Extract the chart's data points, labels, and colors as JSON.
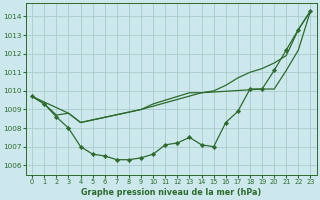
{
  "background_color": "#cce8ec",
  "grid_color": "#aacccc",
  "line_color": "#2d6a2d",
  "marker_color": "#2d6a2d",
  "title": "Graphe pression niveau de la mer (hPa)",
  "xlim": [
    -0.5,
    23.5
  ],
  "ylim": [
    1005.5,
    1014.7
  ],
  "yticks": [
    1006,
    1007,
    1008,
    1009,
    1010,
    1011,
    1012,
    1013,
    1014
  ],
  "xticks": [
    0,
    1,
    2,
    3,
    4,
    5,
    6,
    7,
    8,
    9,
    10,
    11,
    12,
    13,
    14,
    15,
    16,
    17,
    18,
    19,
    20,
    21,
    22,
    23
  ],
  "curve1": {
    "x": [
      0,
      1,
      2,
      3,
      4,
      9,
      10,
      11,
      12,
      13,
      14,
      15,
      16,
      17,
      18,
      19,
      20,
      21,
      22,
      23
    ],
    "y": [
      1009.7,
      1009.3,
      1008.7,
      1008.8,
      1008.3,
      1009.0,
      1009.3,
      1009.5,
      1009.7,
      1009.9,
      1009.9,
      1010.0,
      1010.3,
      1010.7,
      1011.0,
      1011.2,
      1011.5,
      1011.9,
      1013.3,
      1014.3
    ]
  },
  "curve2": {
    "x": [
      0,
      1,
      2,
      3,
      4,
      5,
      6,
      7,
      8,
      9,
      10,
      11,
      12,
      13,
      14,
      15,
      16,
      17,
      18,
      19,
      20,
      21,
      22,
      23
    ],
    "y": [
      1009.7,
      1009.3,
      1008.6,
      1008.0,
      1007.0,
      1006.6,
      1006.5,
      1006.3,
      1006.3,
      1006.4,
      1006.6,
      1007.1,
      1007.2,
      1007.5,
      1007.1,
      1007.0,
      1008.3,
      1008.9,
      1010.1,
      1010.1,
      1011.1,
      1012.2,
      1013.3,
      1014.3
    ]
  },
  "curve3": {
    "x": [
      0,
      3,
      4,
      9,
      14,
      19,
      20,
      21,
      22,
      23
    ],
    "y": [
      1009.7,
      1008.8,
      1008.3,
      1009.0,
      1009.9,
      1010.1,
      1010.1,
      1011.1,
      1012.2,
      1014.3
    ]
  }
}
